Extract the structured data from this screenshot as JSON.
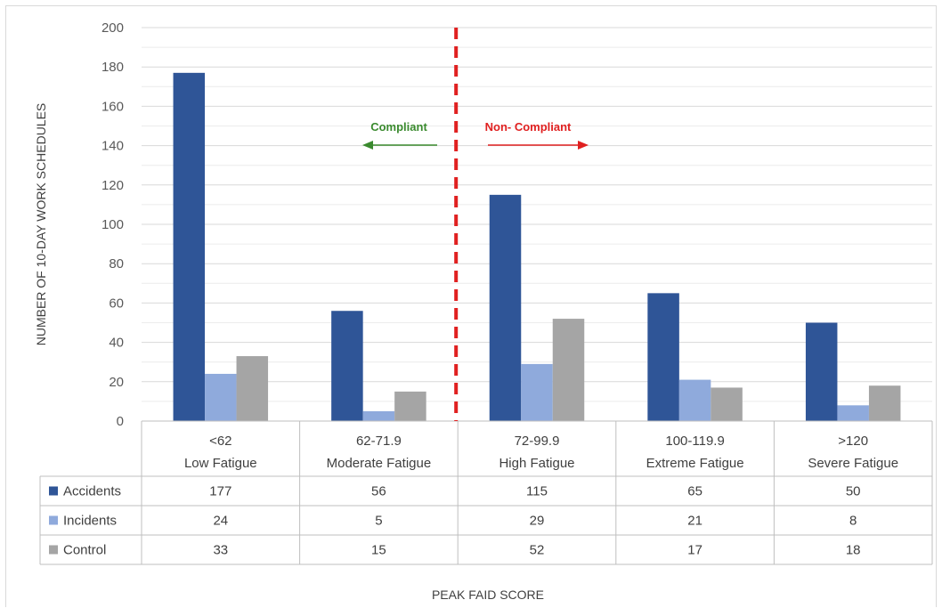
{
  "chart_data": {
    "type": "bar",
    "title": "",
    "xlabel": "PEAK FAID SCORE",
    "ylabel": "NUMBER OF 10-DAY WORK SCHEDULES",
    "ylim": [
      0,
      200
    ],
    "yticks": [
      0,
      20,
      40,
      60,
      80,
      100,
      120,
      140,
      160,
      180,
      200
    ],
    "grid": "horizontal",
    "legend": "data-table",
    "categories": [
      {
        "line1": "<62",
        "line2": "Low Fatigue"
      },
      {
        "line1": "62-71.9",
        "line2": "Moderate Fatigue"
      },
      {
        "line1": "72-99.9",
        "line2": "High Fatigue"
      },
      {
        "line1": "100-119.9",
        "line2": "Extreme Fatigue"
      },
      {
        "line1": ">120",
        "line2": "Severe Fatigue"
      }
    ],
    "series": [
      {
        "name": "Accidents",
        "color": "#2f5597",
        "values": [
          177,
          56,
          115,
          65,
          50
        ]
      },
      {
        "name": "Incidents",
        "color": "#8faadc",
        "values": [
          24,
          5,
          29,
          21,
          8
        ]
      },
      {
        "name": "Control",
        "color": "#a5a5a5",
        "values": [
          33,
          15,
          52,
          17,
          18
        ]
      }
    ],
    "annotations": {
      "compliant": {
        "text": "Compliant",
        "color": "#3a8a2e",
        "direction": "left"
      },
      "non_compliant": {
        "text": "Non- Compliant",
        "color": "#e02020",
        "direction": "right"
      },
      "divider": {
        "color": "#e02020",
        "style": "dashed",
        "between": "62-71.9 and 72-99.9"
      }
    }
  }
}
